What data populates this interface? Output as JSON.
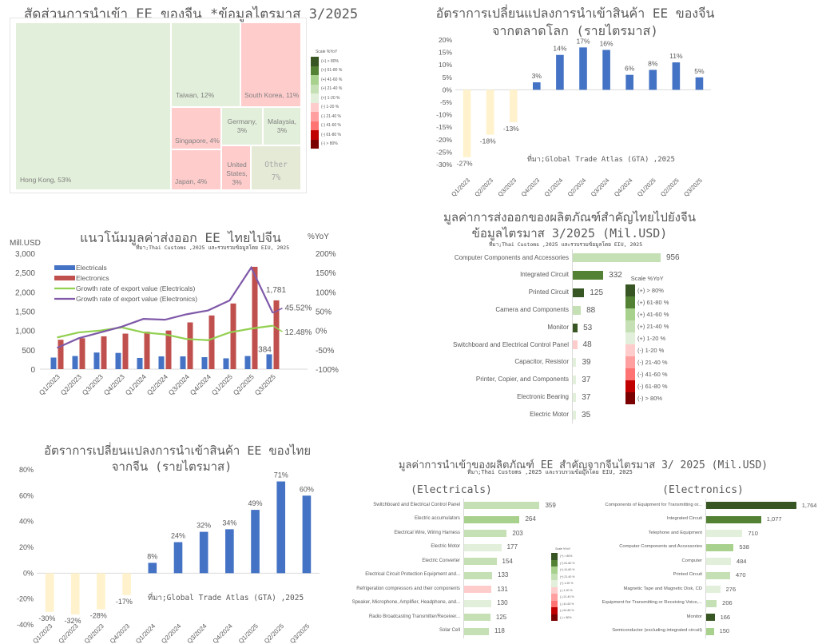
{
  "scale_legend": {
    "title": "Scale %YoY",
    "items": [
      {
        "label": "(+) > 80%",
        "color": "#375623"
      },
      {
        "label": "(+) 61-80 %",
        "color": "#548235"
      },
      {
        "label": "(+) 41-60 %",
        "color": "#a9d18e"
      },
      {
        "label": "(+) 21-40 %",
        "color": "#c5e0b4"
      },
      {
        "label": "(+) 1-20 %",
        "color": "#e2efda"
      },
      {
        "label": "(-) 1-20 %",
        "color": "#ffcccc"
      },
      {
        "label": "(-) 21-40 %",
        "color": "#ff9f9f"
      },
      {
        "label": "(-) 41-60 %",
        "color": "#ff7373"
      },
      {
        "label": "(-) 61-80 %",
        "color": "#c00000"
      },
      {
        "label": "(-) > 80%",
        "color": "#7b0000"
      }
    ]
  },
  "chart_data": [
    {
      "id": "china-ee-import-share",
      "type": "treemap",
      "title": "สัดส่วนการนำเข้า EE ของจีน *ข้อมูลไตรมาส 3/2025",
      "items": [
        {
          "label": "Hong Kong, 53%",
          "name": "Hong Kong",
          "share": 53,
          "color": "#e2efda"
        },
        {
          "label": "Taiwan, 12%",
          "name": "Taiwan",
          "share": 12,
          "color": "#e2efda"
        },
        {
          "label": "South Korea, 11%",
          "name": "South Korea",
          "share": 11,
          "color": "#ffcccc"
        },
        {
          "label": "Singapore, 4%",
          "name": "Singapore",
          "share": 4,
          "color": "#ffcccc"
        },
        {
          "label": "Germany, 3%",
          "name": "Germany",
          "share": 3,
          "color": "#e2efda"
        },
        {
          "label": "Malaysia, 3%",
          "name": "Malaysia",
          "share": 3,
          "color": "#e2efda"
        },
        {
          "label": "Japan, 4%",
          "name": "Japan",
          "share": 4,
          "color": "#ffcccc"
        },
        {
          "label": "United States, 3%",
          "name": "United States",
          "share": 3,
          "color": "#ffcccc"
        },
        {
          "label": "Other 7%",
          "name": "Other",
          "share": 7,
          "color": "#e5ead6"
        }
      ]
    },
    {
      "id": "china-ee-import-growth",
      "type": "bar",
      "title": "อัตราการเปลี่ยนแปลงการนำเข้าสินค้า EE ของจีน จากตลาดโลก (รายไตรมาส)",
      "title_lines": [
        "อัตราการเปลี่ยนแปลงการนำเข้าสินค้า EE ของจีน",
        "จากตลาดโลก (รายไตรมาส)"
      ],
      "source": "ที่มา;Global Trade Atlas (GTA) ,2025",
      "categories": [
        "Q1/2023",
        "Q2/2023",
        "Q3/2023",
        "Q4/2023",
        "Q1/2024",
        "Q2/2024",
        "Q3/2024",
        "Q4/2024",
        "Q1/2025",
        "Q2/2025",
        "Q3/2025"
      ],
      "values": [
        -27,
        -18,
        -13,
        3,
        14,
        17,
        16,
        6,
        8,
        11,
        5
      ],
      "data_labels": [
        "-27%",
        "-18%",
        "-13%",
        "3%",
        "14%",
        "17%",
        "16%",
        "6%",
        "8%",
        "11%",
        "5%"
      ],
      "yticks": [
        "20%",
        "15%",
        "10%",
        "5%",
        "0%",
        "-5%",
        "-10%",
        "-15%",
        "-20%",
        "-25%",
        "-30%"
      ],
      "ylim": [
        -30,
        20
      ],
      "positive_color": "#4472c4",
      "negative_color": "#fff2cc",
      "xlabel": "",
      "ylabel": ""
    },
    {
      "id": "thai-ee-export-trend",
      "type": "bar+line",
      "title": "แนวโน้มมูลค่าส่งออก EE ไทยไปจีน",
      "source": "ที่มา;Thai Customs ,2025 และรวบรวมข้อมูลโดย EIU, 2025",
      "ylabel_left": "Mill.USD",
      "ylabel_right": "%YoY",
      "categories": [
        "Q1/2023",
        "Q2/2023",
        "Q3/2023",
        "Q4/2023",
        "Q1/2024",
        "Q2/2024",
        "Q3/2024",
        "Q4/2024",
        "Q1/2025",
        "Q2/2025",
        "Q3/2025"
      ],
      "ylim_left": [
        0,
        3000
      ],
      "ylim_right": [
        -100,
        200
      ],
      "yticks_left": [
        "3,000",
        "2,500",
        "2,000",
        "1,500",
        "1,000",
        "500",
        "0"
      ],
      "yticks_right": [
        "200%",
        "150%",
        "100%",
        "50%",
        "0%",
        "-50%",
        "-100%"
      ],
      "series": [
        {
          "name": "Electricals",
          "type": "bar",
          "axis": "left",
          "color": "#4472c4",
          "values": [
            300,
            340,
            430,
            420,
            290,
            330,
            330,
            310,
            280,
            340,
            384
          ]
        },
        {
          "name": "Electronics",
          "type": "bar",
          "axis": "left",
          "color": "#c0504d",
          "values": [
            760,
            800,
            850,
            920,
            970,
            1000,
            1210,
            1390,
            1700,
            2650,
            1781
          ]
        },
        {
          "name": "Growth rate of export value (Electricals)",
          "type": "line",
          "axis": "right",
          "color": "#92d050",
          "values": [
            -18,
            -5,
            0,
            8,
            -5,
            -10,
            -22,
            -25,
            -5,
            5,
            12.48
          ]
        },
        {
          "name": "Growth rate of export value (Electronics)",
          "type": "line",
          "axis": "right",
          "color": "#7f59a8",
          "values": [
            -45,
            -20,
            -5,
            10,
            30,
            28,
            42,
            52,
            78,
            163,
            45.52
          ]
        }
      ],
      "annotations": [
        {
          "text": "1,781",
          "series": "Electronics",
          "index": 10
        },
        {
          "text": "384",
          "series": "Electricals",
          "index": 10
        },
        {
          "text": "45.52%",
          "series": "Growth rate of export value (Electronics)",
          "index": 10
        },
        {
          "text": "12.48%",
          "series": "Growth rate of export value (Electricals)",
          "index": 10
        }
      ]
    },
    {
      "id": "thai-key-exports-to-china",
      "type": "bar-horizontal",
      "title_lines": [
        "มูลค่าการส่งออกของผลิตภัณฑ์สำคัญไทยไปยังจีน",
        "ข้อมูลไตรมาส 3/2025 (Mil.USD)"
      ],
      "title": "มูลค่าการส่งออกของผลิตภัณฑ์สำคัญไทยไปยังจีน ข้อมูลไตรมาส 3/2025 (Mil.USD)",
      "source": "ที่มา;Thai Customs ,2025 และรวบรวมข้อมูลโดย EIU, 2025",
      "categories": [
        "Computer Components and Accessories",
        "Integrated Circuit",
        "Printed Circuit",
        "Camera and Components",
        "Monitor",
        "Switchboard and Electrical Control Panel",
        "Capacitor, Resistor",
        "Printer, Copier, and Components",
        "Electronic Bearing",
        "Electric Motor"
      ],
      "values": [
        956,
        332,
        125,
        88,
        53,
        48,
        39,
        37,
        37,
        35
      ],
      "data_labels": [
        "956",
        "332",
        "125",
        "88",
        "53",
        "48",
        "39",
        "37",
        "37",
        "35"
      ],
      "colors": [
        "#c5e0b4",
        "#548235",
        "#375623",
        "#c5e0b4",
        "#375623",
        "#ffcccc",
        "#e2efda",
        "#e2efda",
        "#e2efda",
        "#e2efda"
      ],
      "xlim": [
        0,
        1000
      ]
    },
    {
      "id": "thai-ee-import-growth-from-china",
      "type": "bar",
      "title_lines": [
        "อัตราการเปลี่ยนแปลงการนำเข้าสินค้า EE ของไทย",
        "จากจีน (รายไตรมาส)"
      ],
      "title": "อัตราการเปลี่ยนแปลงการนำเข้าสินค้า EE ของไทย จากจีน (รายไตรมาส)",
      "source": "ที่มา;Global Trade Atlas (GTA) ,2025",
      "categories": [
        "Q1/2023",
        "Q2/2023",
        "Q3/2023",
        "Q4/2023",
        "Q1/2024",
        "Q2/2024",
        "Q3/2024",
        "Q4/2024",
        "Q1/2025",
        "Q2/2025",
        "Q3/2025"
      ],
      "values": [
        -30,
        -32,
        -28,
        -17,
        8,
        24,
        32,
        34,
        49,
        71,
        60
      ],
      "data_labels": [
        "-30%",
        "-32%",
        "-28%",
        "-17%",
        "8%",
        "24%",
        "32%",
        "34%",
        "49%",
        "71%",
        "60%"
      ],
      "yticks": [
        "80%",
        "60%",
        "40%",
        "20%",
        "0%",
        "-20%",
        "-40%"
      ],
      "ylim": [
        -40,
        80
      ],
      "positive_color": "#4472c4",
      "negative_color": "#fff2cc"
    },
    {
      "id": "thai-key-imports-electricals",
      "type": "bar-horizontal",
      "group_title": "มูลค่าการนำเข้าของผลิตภัณฑ์ EE สำคัญจากจีนไตรมาส 3/ 2025 (Mil.USD)",
      "source": "ที่มา;Thai Customs ,2025 และรวบรวมข้อมูลโดย EIU, 2025",
      "title": "(Electricals)",
      "categories": [
        "Switchboard and Electrical Control Panel",
        "Electric accumulators",
        "Electrical Wire, Wiring Harness",
        "Electric Motor",
        "Electric Converter",
        "Electrical Circuit Protection Equipment and...",
        "Refrigeration compressors and their components",
        "Speaker, Microphone, Amplifier, Headphone, and...",
        "Radio Broadcasting Transmitter/Receiver...",
        "Solar Cell"
      ],
      "values": [
        359,
        264,
        203,
        177,
        154,
        133,
        131,
        130,
        125,
        118
      ],
      "data_labels": [
        "359",
        "264",
        "203",
        "177",
        "154",
        "133",
        "131",
        "130",
        "125",
        "118"
      ],
      "colors": [
        "#c5e0b4",
        "#a9d18e",
        "#c5e0b4",
        "#e2efda",
        "#c5e0b4",
        "#c5e0b4",
        "#ffcccc",
        "#e2efda",
        "#c5e0b4",
        "#c5e0b4"
      ],
      "xlim": [
        0,
        380
      ]
    },
    {
      "id": "thai-key-imports-electronics",
      "type": "bar-horizontal",
      "title": "(Electronics)",
      "categories": [
        "Components of Equipment for Transmitting or...",
        "Integrated Circuit",
        "Telephone and Equipment",
        "Computer Components and Accessories",
        "Computer",
        "Printed Circuit",
        "Magnetic Tape and Magnetic Disk, CD",
        "Equipment for Transmitting or Receiving Voice,...",
        "Monitor",
        "Semiconductor (excluding integrated circuit)"
      ],
      "values": [
        1764,
        1077,
        710,
        538,
        484,
        470,
        276,
        206,
        166,
        150
      ],
      "data_labels": [
        "1,764",
        "1,077",
        "710",
        "538",
        "484",
        "470",
        "276",
        "206",
        "166",
        "150"
      ],
      "colors": [
        "#375623",
        "#548235",
        "#e2efda",
        "#a9d18e",
        "#e2efda",
        "#c5e0b4",
        "#e2efda",
        "#c5e0b4",
        "#375623",
        "#a9d18e"
      ],
      "xlim": [
        0,
        1800
      ]
    }
  ]
}
